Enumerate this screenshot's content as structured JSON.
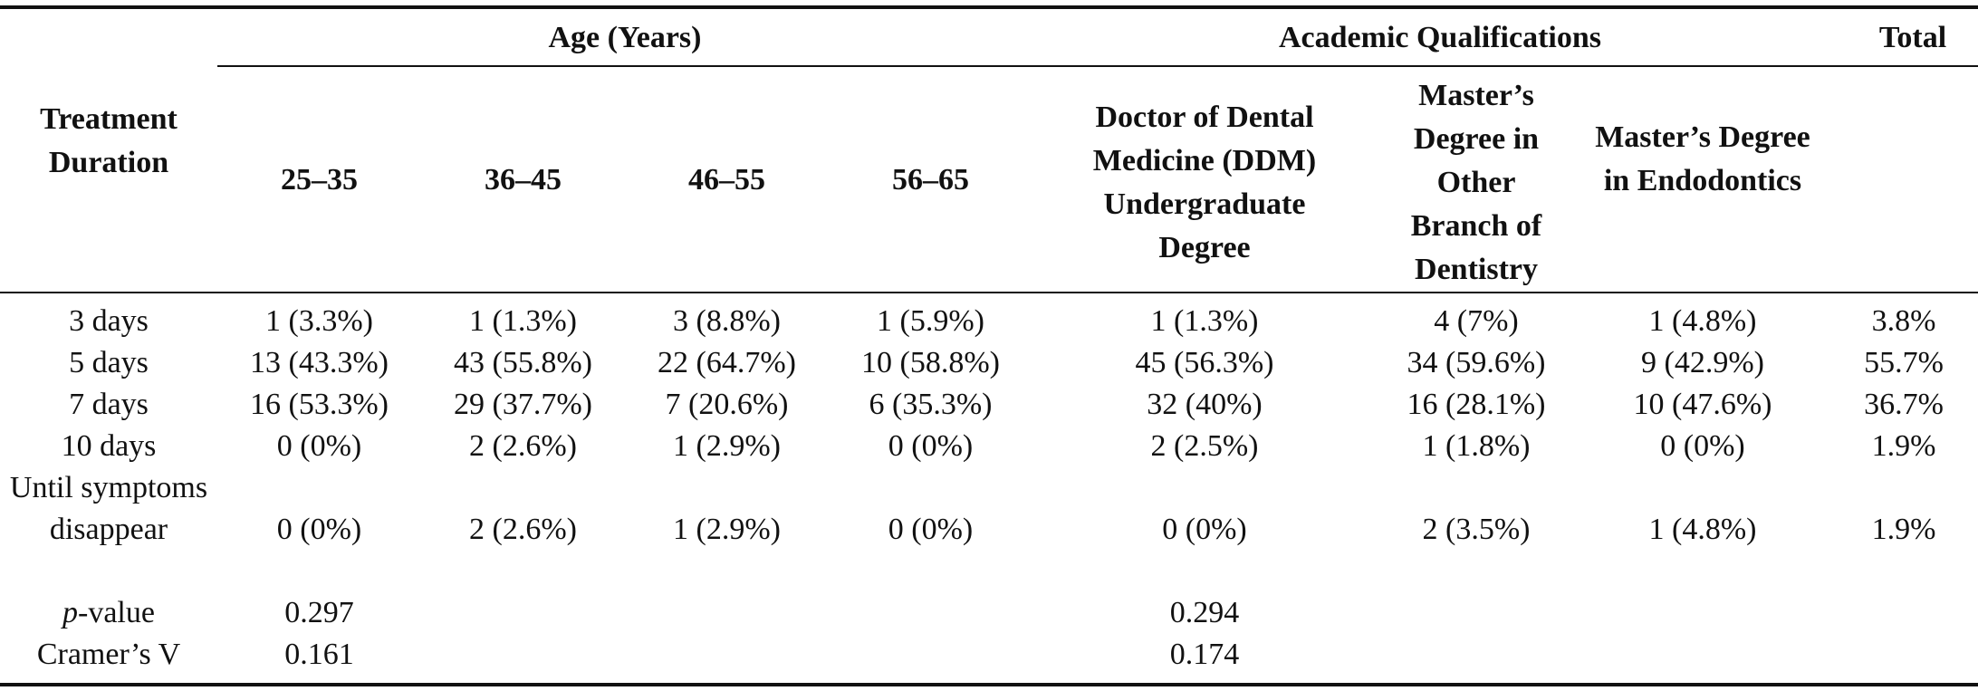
{
  "table": {
    "groups": {
      "age": "Age (Years)",
      "academic": "Academic Qualifications",
      "total": "Total"
    },
    "row_header": "Treatment Duration",
    "columns": [
      "25–35",
      "36–45",
      "46–55",
      "56–65",
      "Doctor of Dental Medicine (DDM) Undergraduate Degree",
      "Master’s Degree in Other Branch of Dentistry",
      "Master’s Degree in Endodontics"
    ],
    "rows": [
      {
        "label": "3 days",
        "cells": [
          "1 (3.3%)",
          "1 (1.3%)",
          "3 (8.8%)",
          "1 (5.9%)",
          "1 (1.3%)",
          "4 (7%)",
          "1 (4.8%)",
          "3.8%"
        ]
      },
      {
        "label": "5 days",
        "cells": [
          "13 (43.3%)",
          "43 (55.8%)",
          "22 (64.7%)",
          "10 (58.8%)",
          "45 (56.3%)",
          "34 (59.6%)",
          "9 (42.9%)",
          "55.7%"
        ]
      },
      {
        "label": "7 days",
        "cells": [
          "16 (53.3%)",
          "29 (37.7%)",
          "7 (20.6%)",
          "6 (35.3%)",
          "32 (40%)",
          "16 (28.1%)",
          "10 (47.6%)",
          "36.7%"
        ]
      },
      {
        "label": "10 days",
        "cells": [
          "0 (0%)",
          "2 (2.6%)",
          "1 (2.9%)",
          "0 (0%)",
          "2 (2.5%)",
          "1 (1.8%)",
          "0 (0%)",
          "1.9%"
        ]
      },
      {
        "label": "Until symptoms disappear",
        "cells": [
          "0 (0%)",
          "2 (2.6%)",
          "1 (2.9%)",
          "0 (0%)",
          "0 (0%)",
          "2 (3.5%)",
          "1 (4.8%)",
          "1.9%"
        ]
      }
    ],
    "stats": {
      "p_label_italic": "p",
      "p_label_rest": "-value",
      "p_age": "0.297",
      "p_academic": "0.294",
      "cramer_label": "Cramer’s V",
      "cramer_age": "0.161",
      "cramer_academic": "0.174"
    }
  }
}
